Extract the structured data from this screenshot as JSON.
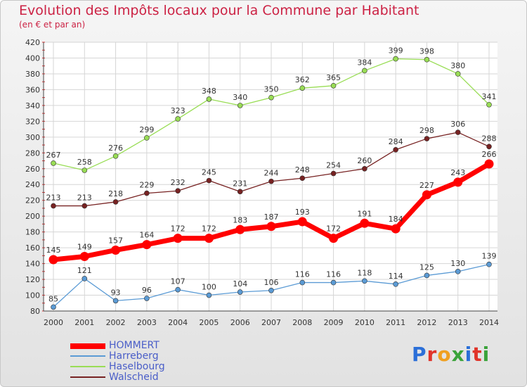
{
  "title": "Evolution des Impôts locaux pour la Commune par Habitant",
  "subtitle": "(en € et par an)",
  "logo": "Proxiti",
  "chart_data": {
    "type": "line",
    "x": [
      "2000",
      "2001",
      "2002",
      "2003",
      "2004",
      "2005",
      "2006",
      "2007",
      "2008",
      "2009",
      "2010",
      "2011",
      "2012",
      "2013",
      "2014"
    ],
    "ylim": [
      80,
      420
    ],
    "yticks": [
      80,
      100,
      120,
      140,
      160,
      180,
      200,
      220,
      240,
      260,
      280,
      300,
      320,
      340,
      360,
      380,
      400,
      420
    ],
    "grid": true,
    "legend_position": "bottom-left",
    "series": [
      {
        "name": "HOMMERT",
        "color": "#ff0000",
        "values": [
          145,
          149,
          157,
          164,
          172,
          172,
          183,
          187,
          193,
          172,
          191,
          184,
          227,
          243,
          266
        ]
      },
      {
        "name": "Harreberg",
        "color": "#5b9bd5",
        "values": [
          85,
          121,
          93,
          96,
          107,
          100,
          104,
          106,
          116,
          116,
          118,
          114,
          125,
          130,
          139
        ]
      },
      {
        "name": "Haselbourg",
        "color": "#99dd55",
        "values": [
          267,
          258,
          276,
          299,
          323,
          348,
          340,
          350,
          362,
          365,
          384,
          399,
          398,
          380,
          341
        ]
      },
      {
        "name": "Walscheid",
        "color": "#772222",
        "values": [
          213,
          213,
          218,
          229,
          232,
          245,
          231,
          244,
          248,
          254,
          260,
          284,
          298,
          306,
          288
        ]
      }
    ]
  }
}
